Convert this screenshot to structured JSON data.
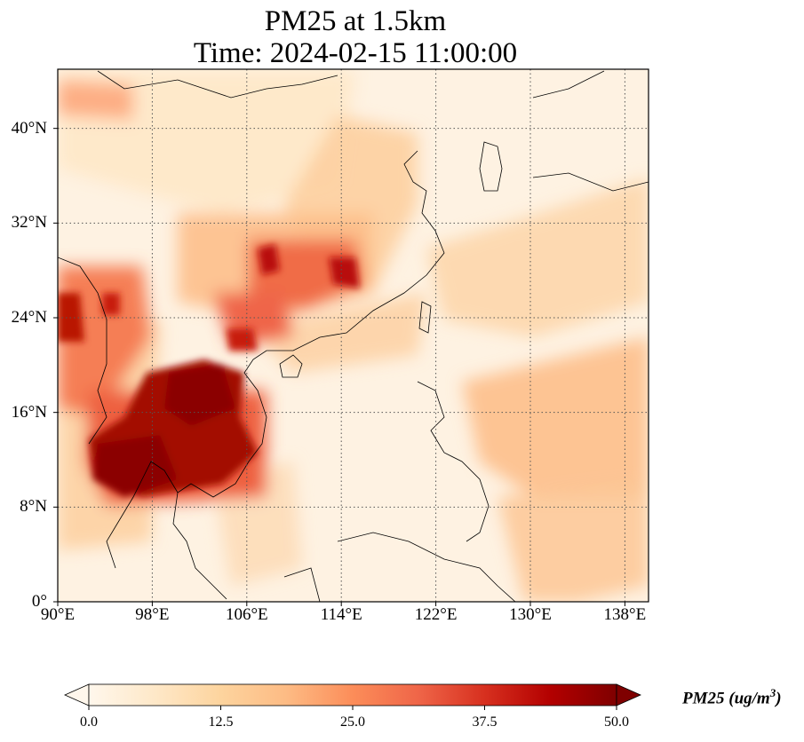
{
  "title_line1": "PM25 at 1.5km",
  "title_line2": "Time: 2024-02-15 11:00:00",
  "map": {
    "lon_range": [
      90,
      140
    ],
    "lat_range": [
      0,
      45
    ],
    "grid": true,
    "lat_ticks": [
      {
        "value": 40,
        "label": "40°N"
      },
      {
        "value": 32,
        "label": "32°N"
      },
      {
        "value": 24,
        "label": "24°N"
      },
      {
        "value": 16,
        "label": "16°N"
      },
      {
        "value": 8,
        "label": "8°N"
      },
      {
        "value": 0,
        "label": "0°"
      }
    ],
    "lon_ticks": [
      {
        "value": 90,
        "label": "90°E"
      },
      {
        "value": 98,
        "label": "98°E"
      },
      {
        "value": 106,
        "label": "106°E"
      },
      {
        "value": 114,
        "label": "114°E"
      },
      {
        "value": 122,
        "label": "122°E"
      },
      {
        "value": 130,
        "label": "130°E"
      },
      {
        "value": 138,
        "label": "138°E"
      }
    ]
  },
  "colorbar": {
    "colormap": "OrRd",
    "min": 0,
    "max": 50,
    "extend": "both",
    "ticks": [
      "0.0",
      "12.5",
      "25.0",
      "37.5",
      "50.0"
    ],
    "label": "PM25 (ug/m",
    "label_sup": "3",
    "label_close": ")"
  }
}
